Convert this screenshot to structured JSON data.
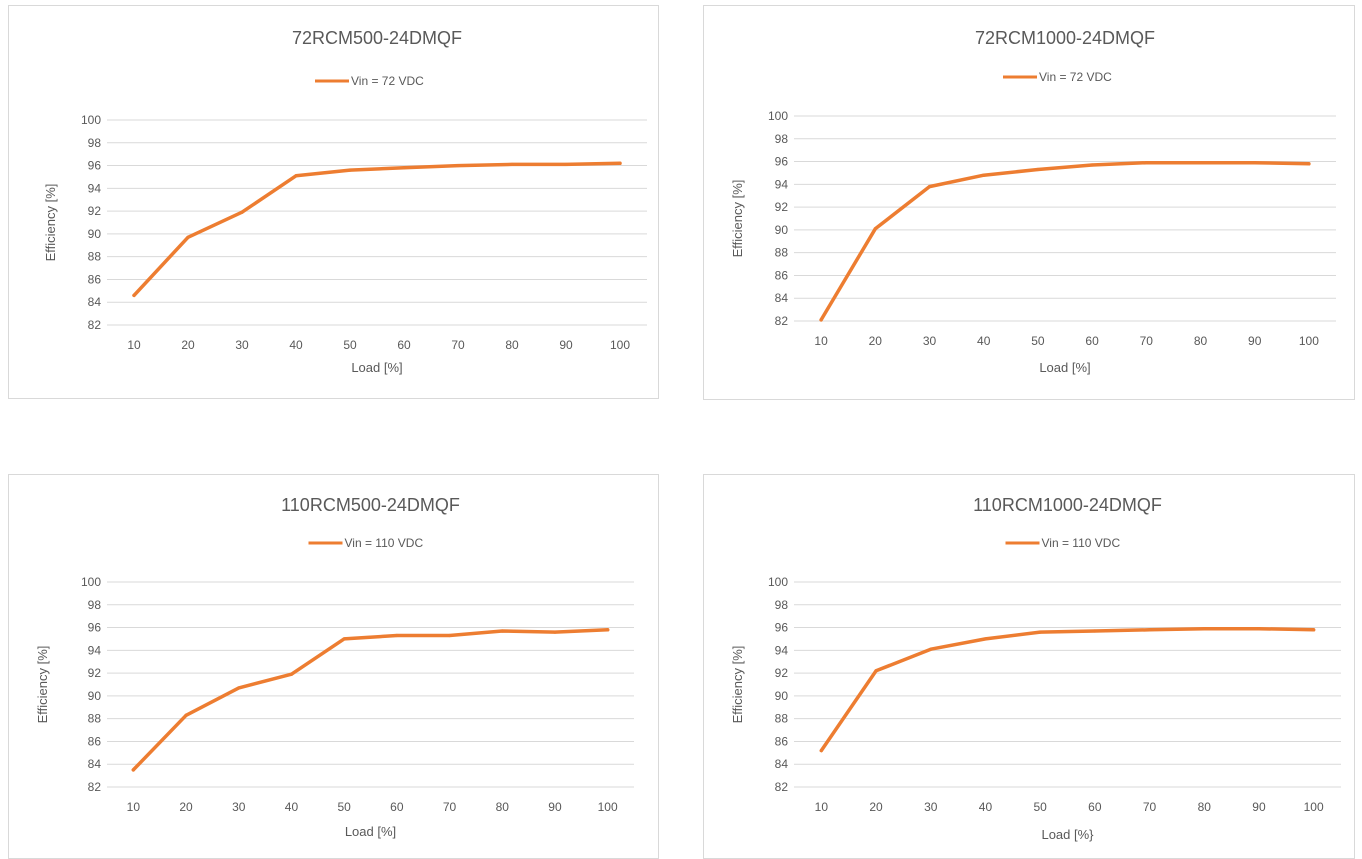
{
  "chart_data": [
    {
      "type": "line",
      "title": "72RCM500-24DMQF",
      "xlabel": "Load [%]",
      "ylabel": "Efficiency [%]",
      "categories": [
        "10",
        "20",
        "30",
        "40",
        "50",
        "60",
        "70",
        "80",
        "90",
        "100"
      ],
      "yticks": [
        "82",
        "84",
        "86",
        "88",
        "90",
        "92",
        "94",
        "96",
        "98",
        "100"
      ],
      "ylim": [
        82,
        100
      ],
      "grid": true,
      "legend_position": "top",
      "series": [
        {
          "name": "Vin = 72 VDC",
          "color": "#ED7D31",
          "values": [
            84.6,
            89.7,
            91.9,
            95.1,
            95.6,
            95.8,
            96.0,
            96.1,
            96.1,
            96.2
          ]
        }
      ]
    },
    {
      "type": "line",
      "title": "72RCM1000-24DMQF",
      "xlabel": "Load [%]",
      "ylabel": "Efficiency [%]",
      "categories": [
        "10",
        "20",
        "30",
        "40",
        "50",
        "60",
        "70",
        "80",
        "90",
        "100"
      ],
      "yticks": [
        "82",
        "84",
        "86",
        "88",
        "90",
        "92",
        "94",
        "96",
        "98",
        "100"
      ],
      "ylim": [
        82,
        100
      ],
      "grid": true,
      "legend_position": "top",
      "series": [
        {
          "name": "Vin = 72 VDC",
          "color": "#ED7D31",
          "values": [
            82.1,
            90.1,
            93.8,
            94.8,
            95.3,
            95.7,
            95.9,
            95.9,
            95.9,
            95.8
          ]
        }
      ]
    },
    {
      "type": "line",
      "title": "110RCM500-24DMQF",
      "xlabel": "Load [%]",
      "ylabel": "Efficiency [%]",
      "categories": [
        "10",
        "20",
        "30",
        "40",
        "50",
        "60",
        "70",
        "80",
        "90",
        "100"
      ],
      "yticks": [
        "82",
        "84",
        "86",
        "88",
        "90",
        "92",
        "94",
        "96",
        "98",
        "100"
      ],
      "ylim": [
        82,
        100
      ],
      "grid": true,
      "legend_position": "top",
      "series": [
        {
          "name": "Vin = 110 VDC",
          "color": "#ED7D31",
          "values": [
            83.5,
            88.3,
            90.7,
            91.9,
            95.0,
            95.3,
            95.3,
            95.7,
            95.6,
            95.8
          ]
        }
      ]
    },
    {
      "type": "line",
      "title": "110RCM1000-24DMQF",
      "xlabel": "Load [%}",
      "ylabel": "Efficiency [%]",
      "categories": [
        "10",
        "20",
        "30",
        "40",
        "50",
        "60",
        "70",
        "80",
        "90",
        "100"
      ],
      "yticks": [
        "82",
        "84",
        "86",
        "88",
        "90",
        "92",
        "94",
        "96",
        "98",
        "100"
      ],
      "ylim": [
        82,
        100
      ],
      "grid": true,
      "legend_position": "top",
      "series": [
        {
          "name": "Vin = 110 VDC",
          "color": "#ED7D31",
          "values": [
            85.2,
            92.2,
            94.1,
            95.0,
            95.6,
            95.7,
            95.8,
            95.9,
            95.9,
            95.8
          ]
        }
      ]
    }
  ]
}
